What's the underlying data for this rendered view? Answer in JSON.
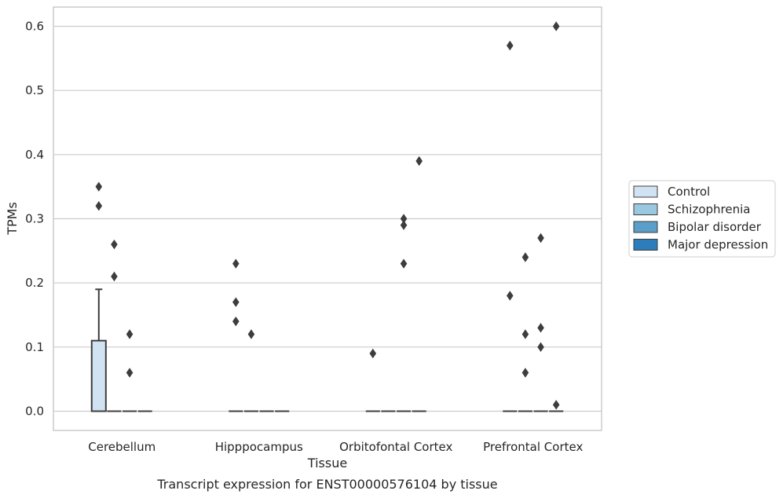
{
  "chart_data": {
    "type": "box",
    "caption": "Transcript expression for ENST00000576104 by tissue",
    "xlabel": "Tissue",
    "ylabel": "TPMs",
    "ylim": [
      -0.03,
      0.63
    ],
    "yticks": [
      0.0,
      0.1,
      0.2,
      0.3,
      0.4,
      0.5,
      0.6
    ],
    "ytick_labels": [
      "0.0",
      "0.1",
      "0.2",
      "0.3",
      "0.4",
      "0.5",
      "0.6"
    ],
    "categories": [
      "Cerebellum",
      "Hipppocampus",
      "Orbitofontal Cortex",
      "Prefrontal Cortex"
    ],
    "grid": "horizontal",
    "legend_placement": "right",
    "series": [
      {
        "name": "Control",
        "color": "#d1e2f2",
        "boxes": [
          {
            "q1": 0.0,
            "median": 0.0,
            "q3": 0.11,
            "whisker_low": 0.0,
            "whisker_high": 0.19,
            "outliers": [
              0.35,
              0.32
            ]
          },
          {
            "q1": 0.0,
            "median": 0.0,
            "q3": 0.0,
            "whisker_low": 0.0,
            "whisker_high": 0.0,
            "outliers": [
              0.23,
              0.17,
              0.14
            ]
          },
          {
            "q1": 0.0,
            "median": 0.0,
            "q3": 0.0,
            "whisker_low": 0.0,
            "whisker_high": 0.0,
            "outliers": [
              0.09
            ]
          },
          {
            "q1": 0.0,
            "median": 0.0,
            "q3": 0.0,
            "whisker_low": 0.0,
            "whisker_high": 0.0,
            "outliers": [
              0.57,
              0.18
            ]
          }
        ]
      },
      {
        "name": "Schizophrenia",
        "color": "#9ac8e0",
        "boxes": [
          {
            "q1": 0.0,
            "median": 0.0,
            "q3": 0.0,
            "whisker_low": 0.0,
            "whisker_high": 0.0,
            "outliers": [
              0.26,
              0.21
            ]
          },
          {
            "q1": 0.0,
            "median": 0.0,
            "q3": 0.0,
            "whisker_low": 0.0,
            "whisker_high": 0.0,
            "outliers": [
              0.12
            ]
          },
          {
            "q1": 0.0,
            "median": 0.0,
            "q3": 0.0,
            "whisker_low": 0.0,
            "whisker_high": 0.0,
            "outliers": []
          },
          {
            "q1": 0.0,
            "median": 0.0,
            "q3": 0.0,
            "whisker_low": 0.0,
            "whisker_high": 0.0,
            "outliers": [
              0.24,
              0.12,
              0.06
            ]
          }
        ]
      },
      {
        "name": "Bipolar disorder",
        "color": "#5b9ec9",
        "boxes": [
          {
            "q1": 0.0,
            "median": 0.0,
            "q3": 0.0,
            "whisker_low": 0.0,
            "whisker_high": 0.0,
            "outliers": [
              0.12,
              0.06
            ]
          },
          {
            "q1": 0.0,
            "median": 0.0,
            "q3": 0.0,
            "whisker_low": 0.0,
            "whisker_high": 0.0,
            "outliers": []
          },
          {
            "q1": 0.0,
            "median": 0.0,
            "q3": 0.0,
            "whisker_low": 0.0,
            "whisker_high": 0.0,
            "outliers": [
              0.3,
              0.29,
              0.23
            ]
          },
          {
            "q1": 0.0,
            "median": 0.0,
            "q3": 0.0,
            "whisker_low": 0.0,
            "whisker_high": 0.0,
            "outliers": [
              0.27,
              0.13,
              0.1
            ]
          }
        ]
      },
      {
        "name": "Major depression",
        "color": "#2d7dbb",
        "boxes": [
          {
            "q1": 0.0,
            "median": 0.0,
            "q3": 0.0,
            "whisker_low": 0.0,
            "whisker_high": 0.0,
            "outliers": []
          },
          {
            "q1": 0.0,
            "median": 0.0,
            "q3": 0.0,
            "whisker_low": 0.0,
            "whisker_high": 0.0,
            "outliers": []
          },
          {
            "q1": 0.0,
            "median": 0.0,
            "q3": 0.0,
            "whisker_low": 0.0,
            "whisker_high": 0.0,
            "outliers": [
              0.39
            ]
          },
          {
            "q1": 0.0,
            "median": 0.0,
            "q3": 0.0,
            "whisker_low": 0.0,
            "whisker_high": 0.0,
            "outliers": [
              0.6,
              0.01
            ]
          }
        ]
      }
    ]
  }
}
